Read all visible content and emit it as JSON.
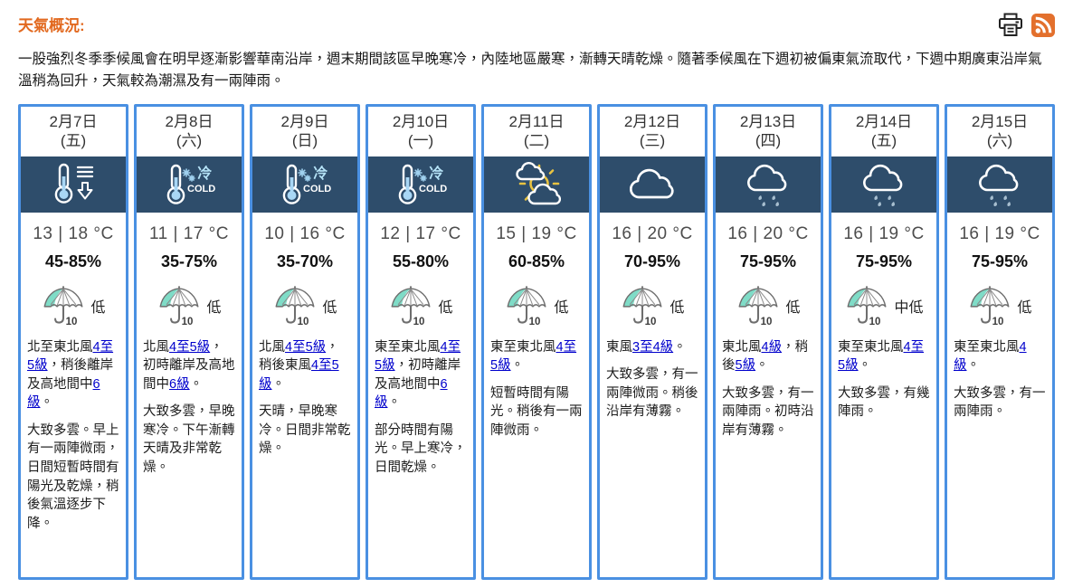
{
  "page": {
    "title": "天氣概況:",
    "summary": "一股強烈冬季季候風會在明早逐漸影響華南沿岸，週末期間該區早晚寒冷，內陸地區嚴寒，漸轉天晴乾燥。隨著季候風在下週初被偏東氣流取代，下週中期廣東沿岸氣溫稍為回升，天氣較為潮濕及有一兩陣雨。"
  },
  "toolbar": {
    "print_icon": "printer-icon",
    "rss_icon": "rss-icon"
  },
  "icon_labels": {
    "cold_cn": "冷",
    "cold_en": "COLD",
    "umbrella_number": "10"
  },
  "colors": {
    "accent_orange": "#e2691f",
    "header_navy": "#2e4d6b",
    "border_blue": "#4a90e2",
    "link_blue": "#0000cc",
    "psr_teal": "#7fdcc7",
    "sun_yellow": "#e8c341"
  },
  "shared": {
    "psr_icon": "umbrella"
  },
  "forecast": {
    "days": [
      {
        "date": "2月7日",
        "weekday": "(五)",
        "icon": "temp-drop",
        "temp": "13 | 18 °C",
        "humidity": "45-85%",
        "psr": "低",
        "wind": [
          {
            "text": "北至東北風"
          },
          {
            "text": "4至5級",
            "link": true
          },
          {
            "text": "，稍後離岸及高地間中"
          },
          {
            "text": "6級",
            "link": true
          },
          {
            "text": "。"
          }
        ],
        "description": "大致多雲。早上有一兩陣微雨，日間短暫時間有陽光及乾燥，稍後氣溫逐步下降。"
      },
      {
        "date": "2月8日",
        "weekday": "(六)",
        "icon": "cold",
        "temp": "11 | 17 °C",
        "humidity": "35-75%",
        "psr": "低",
        "wind": [
          {
            "text": "北風"
          },
          {
            "text": "4至5級",
            "link": true
          },
          {
            "text": "，初時離岸及高地間中"
          },
          {
            "text": "6級",
            "link": true
          },
          {
            "text": "。"
          }
        ],
        "description": "大致多雲，早晚寒冷。下午漸轉天晴及非常乾燥。"
      },
      {
        "date": "2月9日",
        "weekday": "(日)",
        "icon": "cold",
        "temp": "10 | 16 °C",
        "humidity": "35-70%",
        "psr": "低",
        "wind": [
          {
            "text": "北風"
          },
          {
            "text": "4至5級",
            "link": true
          },
          {
            "text": "，稍後東風"
          },
          {
            "text": "4至5級",
            "link": true
          },
          {
            "text": "。"
          }
        ],
        "description": "天晴，早晚寒冷。日間非常乾燥。"
      },
      {
        "date": "2月10日",
        "weekday": "(一)",
        "icon": "cold",
        "temp": "12 | 17 °C",
        "humidity": "55-80%",
        "psr": "低",
        "wind": [
          {
            "text": "東至東北風"
          },
          {
            "text": "4至5級",
            "link": true
          },
          {
            "text": "，初時離岸及高地間中"
          },
          {
            "text": "6級",
            "link": true
          },
          {
            "text": "。"
          }
        ],
        "description": "部分時間有陽光。早上寒冷，日間乾燥。"
      },
      {
        "date": "2月11日",
        "weekday": "(二)",
        "icon": "sunny-periods",
        "temp": "15 | 19 °C",
        "humidity": "60-85%",
        "psr": "低",
        "wind": [
          {
            "text": "東至東北風"
          },
          {
            "text": "4至5級",
            "link": true
          },
          {
            "text": "。"
          }
        ],
        "description": "短暫時間有陽光。稍後有一兩陣微雨。"
      },
      {
        "date": "2月12日",
        "weekday": "(三)",
        "icon": "cloudy",
        "temp": "16 | 20 °C",
        "humidity": "70-95%",
        "psr": "低",
        "wind": [
          {
            "text": "東風"
          },
          {
            "text": "3至4級",
            "link": true
          },
          {
            "text": "。"
          }
        ],
        "description": "大致多雲，有一兩陣微雨。稍後沿岸有薄霧。"
      },
      {
        "date": "2月13日",
        "weekday": "(四)",
        "icon": "light-rain",
        "temp": "16 | 20 °C",
        "humidity": "75-95%",
        "psr": "低",
        "wind": [
          {
            "text": "東北風"
          },
          {
            "text": "4級",
            "link": true
          },
          {
            "text": "，稍後"
          },
          {
            "text": "5級",
            "link": true
          },
          {
            "text": "。"
          }
        ],
        "description": "大致多雲，有一兩陣雨。初時沿岸有薄霧。"
      },
      {
        "date": "2月14日",
        "weekday": "(五)",
        "icon": "light-rain",
        "temp": "16 | 19 °C",
        "humidity": "75-95%",
        "psr": "中低",
        "wind": [
          {
            "text": "東至東北風"
          },
          {
            "text": "4至5級",
            "link": true
          },
          {
            "text": "。"
          }
        ],
        "description": "大致多雲，有幾陣雨。"
      },
      {
        "date": "2月15日",
        "weekday": "(六)",
        "icon": "light-rain",
        "temp": "16 | 19 °C",
        "humidity": "75-95%",
        "psr": "低",
        "wind": [
          {
            "text": "東至東北風"
          },
          {
            "text": "4級",
            "link": true
          },
          {
            "text": "。"
          }
        ],
        "description": "大致多雲，有一兩陣雨。"
      }
    ]
  }
}
